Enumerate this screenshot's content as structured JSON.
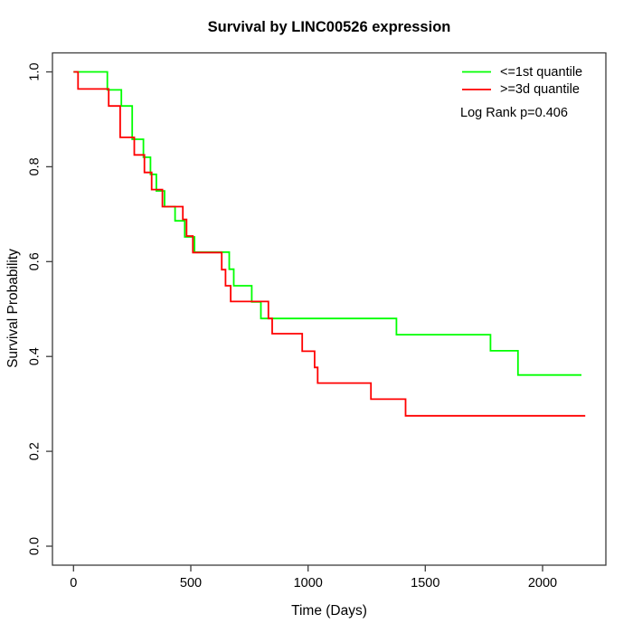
{
  "title": "Survival by LINC00526 expression",
  "xlabel": "Time (Days)",
  "ylabel": "Survival Probability",
  "legend": {
    "items": [
      {
        "label": "<=1st quantile",
        "color": "#00ff00"
      },
      {
        "label": ">=3d quantile",
        "color": "#ff0000"
      }
    ],
    "note": "Log Rank p=0.406"
  },
  "chart_data": {
    "type": "line",
    "subtype": "kaplan-meier-step",
    "title": "Survival by LINC00526 expression",
    "xlabel": "Time (Days)",
    "ylabel": "Survival Probability",
    "xlim": [
      -90,
      2270
    ],
    "ylim": [
      -0.04,
      1.04
    ],
    "xticks": [
      0,
      500,
      1000,
      1500,
      2000
    ],
    "ytick_labels": [
      "0.0",
      "0.2",
      "0.4",
      "0.6",
      "0.8",
      "1.0"
    ],
    "grid": false,
    "legend_position": "top-right",
    "annotation": "Log Rank p=0.406",
    "box_color": "#3c3c3c",
    "series": [
      {
        "name": "<=1st quantile",
        "color": "#00ff00",
        "end_time": 2166,
        "steps": [
          [
            0,
            1.0
          ],
          [
            144,
            0.962
          ],
          [
            204,
            0.928
          ],
          [
            250,
            0.858
          ],
          [
            298,
            0.82
          ],
          [
            328,
            0.784
          ],
          [
            353,
            0.749
          ],
          [
            388,
            0.716
          ],
          [
            433,
            0.686
          ],
          [
            474,
            0.652
          ],
          [
            516,
            0.62
          ],
          [
            664,
            0.584
          ],
          [
            683,
            0.549
          ],
          [
            760,
            0.515
          ],
          [
            799,
            0.48
          ],
          [
            1377,
            0.446
          ],
          [
            1778,
            0.412
          ],
          [
            1895,
            0.361
          ]
        ]
      },
      {
        "name": ">=3d quantile",
        "color": "#ff0000",
        "end_time": 2182,
        "steps": [
          [
            0,
            1.0
          ],
          [
            19,
            0.964
          ],
          [
            150,
            0.928
          ],
          [
            199,
            0.862
          ],
          [
            259,
            0.825
          ],
          [
            302,
            0.788
          ],
          [
            333,
            0.752
          ],
          [
            379,
            0.716
          ],
          [
            466,
            0.689
          ],
          [
            482,
            0.654
          ],
          [
            509,
            0.619
          ],
          [
            632,
            0.583
          ],
          [
            648,
            0.549
          ],
          [
            670,
            0.516
          ],
          [
            831,
            0.48
          ],
          [
            847,
            0.448
          ],
          [
            975,
            0.411
          ],
          [
            1028,
            0.377
          ],
          [
            1041,
            0.344
          ],
          [
            1268,
            0.31
          ],
          [
            1416,
            0.275
          ]
        ]
      }
    ]
  }
}
